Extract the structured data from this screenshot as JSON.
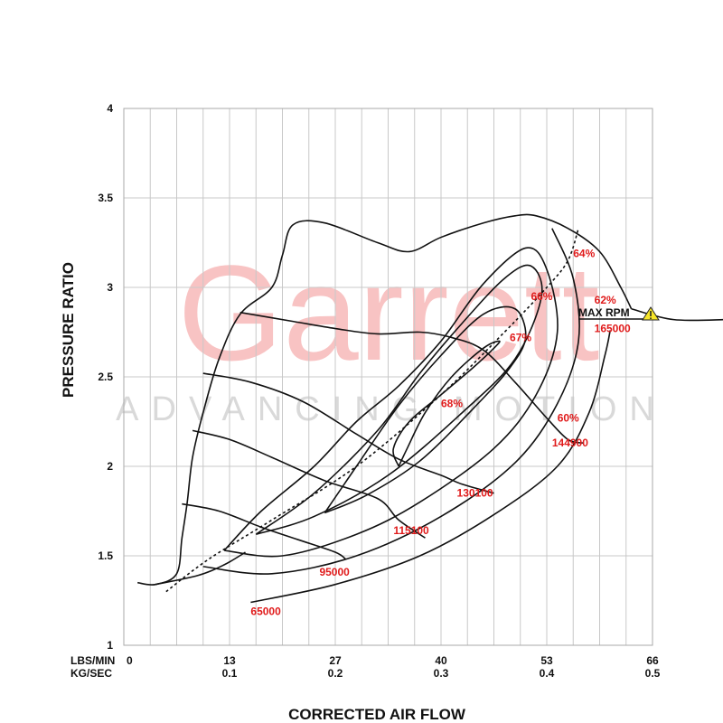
{
  "chart_data": {
    "type": "line",
    "title": "",
    "xlabel": "CORRECTED AIR FLOW",
    "ylabel": "PRESSURE RATIO",
    "xlim": [
      0,
      0.5
    ],
    "ylim": [
      1,
      4
    ],
    "grid": true,
    "x_tick_unit_labels": [
      "LBS/MIN",
      "KG/SEC"
    ],
    "x_ticks_lbs": [
      "0",
      "13",
      "27",
      "40",
      "53",
      "66"
    ],
    "x_ticks_kg": [
      "",
      "0.1",
      "0.2",
      "0.3",
      "0.4",
      "0.5"
    ],
    "y_ticks": [
      "1",
      "1.5",
      "2",
      "2.5",
      "3",
      "3.5",
      "4"
    ],
    "watermark": {
      "brand": "Garrett",
      "tagline": "ADVANCING MOTION"
    },
    "max_rpm_label": "MAX RPM",
    "surge_line": [
      [
        0.013,
        1.35
      ],
      [
        0.03,
        1.34
      ],
      [
        0.05,
        1.4
      ],
      [
        0.055,
        1.6
      ],
      [
        0.06,
        1.8
      ],
      [
        0.065,
        2.05
      ],
      [
        0.075,
        2.3
      ],
      [
        0.09,
        2.6
      ],
      [
        0.11,
        2.85
      ],
      [
        0.14,
        3.0
      ],
      [
        0.15,
        3.18
      ],
      [
        0.16,
        3.35
      ],
      [
        0.19,
        3.36
      ],
      [
        0.24,
        3.25
      ],
      [
        0.27,
        3.2
      ],
      [
        0.3,
        3.28
      ],
      [
        0.34,
        3.36
      ],
      [
        0.37,
        3.4
      ],
      [
        0.39,
        3.4
      ],
      [
        0.42,
        3.33
      ],
      [
        0.45,
        3.2
      ],
      [
        0.47,
        3.0
      ],
      [
        0.48,
        2.88
      ]
    ],
    "speed_lines": [
      {
        "label": "65000",
        "points": [
          [
            0.03,
            1.34
          ],
          [
            0.07,
            1.39
          ],
          [
            0.095,
            1.45
          ],
          [
            0.115,
            1.52
          ]
        ],
        "label_at": [
          0.12,
          1.17
        ]
      },
      {
        "label": "95000",
        "points": [
          [
            0.055,
            1.79
          ],
          [
            0.09,
            1.75
          ],
          [
            0.13,
            1.66
          ],
          [
            0.165,
            1.59
          ],
          [
            0.2,
            1.52
          ],
          [
            0.21,
            1.48
          ]
        ],
        "label_at": [
          0.185,
          1.39
        ]
      },
      {
        "label": "115100",
        "points": [
          [
            0.065,
            2.2
          ],
          [
            0.1,
            2.15
          ],
          [
            0.14,
            2.05
          ],
          [
            0.19,
            1.92
          ],
          [
            0.24,
            1.82
          ],
          [
            0.26,
            1.7
          ],
          [
            0.285,
            1.6
          ]
        ],
        "label_at": [
          0.255,
          1.62
        ]
      },
      {
        "label": "130100",
        "points": [
          [
            0.075,
            2.52
          ],
          [
            0.12,
            2.47
          ],
          [
            0.17,
            2.36
          ],
          [
            0.22,
            2.18
          ],
          [
            0.26,
            2.04
          ],
          [
            0.3,
            1.95
          ],
          [
            0.32,
            1.9
          ],
          [
            0.35,
            1.85
          ]
        ],
        "label_at": [
          0.315,
          1.83
        ]
      },
      {
        "label": "144900",
        "points": [
          [
            0.11,
            2.86
          ],
          [
            0.16,
            2.81
          ],
          [
            0.2,
            2.77
          ],
          [
            0.24,
            2.74
          ],
          [
            0.28,
            2.75
          ],
          [
            0.31,
            2.72
          ],
          [
            0.34,
            2.65
          ],
          [
            0.37,
            2.47
          ],
          [
            0.4,
            2.27
          ],
          [
            0.42,
            2.15
          ],
          [
            0.435,
            2.13
          ]
        ],
        "label_at": [
          0.405,
          2.11
        ]
      },
      {
        "label": "165000",
        "points": [
          [
            0.48,
            2.88
          ],
          [
            0.52,
            2.82
          ],
          [
            0.57,
            2.82
          ]
        ],
        "label_at": [
          0.445,
          2.75
        ]
      }
    ],
    "efficiency_islands": [
      {
        "label": "68%",
        "label_at": [
          0.3,
          2.33
        ],
        "points": [
          [
            0.26,
            2.0
          ],
          [
            0.255,
            2.1
          ],
          [
            0.27,
            2.25
          ],
          [
            0.3,
            2.4
          ],
          [
            0.33,
            2.55
          ],
          [
            0.35,
            2.66
          ],
          [
            0.355,
            2.7
          ],
          [
            0.34,
            2.66
          ],
          [
            0.31,
            2.5
          ],
          [
            0.285,
            2.3
          ],
          [
            0.268,
            2.1
          ],
          [
            0.26,
            2.0
          ]
        ]
      },
      {
        "label": "67%",
        "label_at": [
          0.365,
          2.7
        ],
        "points": [
          [
            0.19,
            1.74
          ],
          [
            0.23,
            1.84
          ],
          [
            0.28,
            2.03
          ],
          [
            0.33,
            2.32
          ],
          [
            0.365,
            2.55
          ],
          [
            0.38,
            2.72
          ],
          [
            0.37,
            2.88
          ],
          [
            0.34,
            2.85
          ],
          [
            0.3,
            2.62
          ],
          [
            0.26,
            2.34
          ],
          [
            0.22,
            2.0
          ],
          [
            0.19,
            1.74
          ]
        ]
      },
      {
        "label": "66%",
        "label_at": [
          0.385,
          2.93
        ],
        "points": [
          [
            0.125,
            1.62
          ],
          [
            0.18,
            1.72
          ],
          [
            0.25,
            1.95
          ],
          [
            0.32,
            2.3
          ],
          [
            0.37,
            2.6
          ],
          [
            0.395,
            2.95
          ],
          [
            0.385,
            3.12
          ],
          [
            0.36,
            3.05
          ],
          [
            0.32,
            2.8
          ],
          [
            0.28,
            2.52
          ],
          [
            0.24,
            2.2
          ],
          [
            0.18,
            1.85
          ],
          [
            0.125,
            1.62
          ]
        ]
      },
      {
        "label": "64%",
        "label_at": [
          0.425,
          3.17
        ],
        "points": [
          [
            0.095,
            1.53
          ],
          [
            0.15,
            1.5
          ],
          [
            0.22,
            1.62
          ],
          [
            0.28,
            1.8
          ],
          [
            0.35,
            2.1
          ],
          [
            0.39,
            2.4
          ],
          [
            0.41,
            2.75
          ],
          [
            0.4,
            3.1
          ],
          [
            0.38,
            3.22
          ],
          [
            0.34,
            3.02
          ],
          [
            0.3,
            2.7
          ],
          [
            0.26,
            2.45
          ],
          [
            0.22,
            2.25
          ],
          [
            0.18,
            2.0
          ],
          [
            0.13,
            1.75
          ],
          [
            0.095,
            1.53
          ]
        ]
      },
      {
        "label": "62%",
        "label_at": [
          0.445,
          2.91
        ],
        "points": [
          [
            0.075,
            1.44
          ],
          [
            0.14,
            1.4
          ],
          [
            0.22,
            1.5
          ],
          [
            0.3,
            1.72
          ],
          [
            0.37,
            2.02
          ],
          [
            0.41,
            2.35
          ],
          [
            0.43,
            2.7
          ],
          [
            0.425,
            3.05
          ],
          [
            0.405,
            3.33
          ]
        ]
      },
      {
        "label": "60%",
        "label_at": [
          0.41,
          2.25
        ],
        "points": [
          [
            0.12,
            1.24
          ],
          [
            0.2,
            1.34
          ],
          [
            0.28,
            1.5
          ],
          [
            0.35,
            1.73
          ],
          [
            0.41,
            2.0
          ],
          [
            0.44,
            2.3
          ],
          [
            0.455,
            2.62
          ],
          [
            0.46,
            2.76
          ]
        ]
      }
    ],
    "choke_efficiency_line": [
      [
        0.04,
        1.3
      ],
      [
        0.08,
        1.48
      ],
      [
        0.14,
        1.7
      ],
      [
        0.22,
        2.0
      ],
      [
        0.3,
        2.4
      ],
      [
        0.36,
        2.75
      ],
      [
        0.4,
        3.0
      ],
      [
        0.42,
        3.15
      ],
      [
        0.43,
        3.33
      ]
    ]
  }
}
